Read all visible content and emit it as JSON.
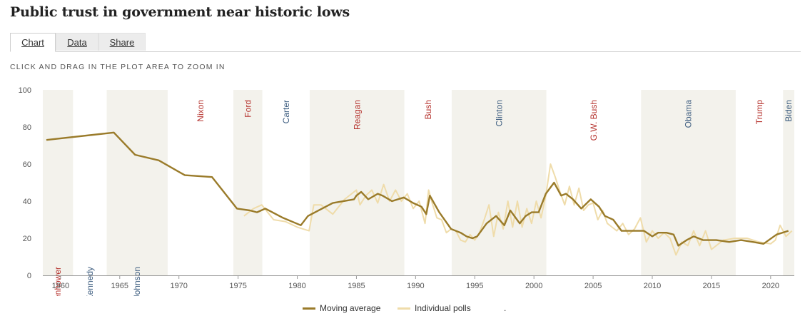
{
  "page": {
    "title": "Public trust in government near historic lows",
    "tabs": [
      {
        "label": "Chart",
        "active": true
      },
      {
        "label": "Data",
        "active": false
      },
      {
        "label": "Share",
        "active": false
      }
    ],
    "hint": "CLICK AND DRAG IN THE PLOT AREA TO ZOOM IN"
  },
  "colors": {
    "moving_average": "#9a7b2a",
    "individual_polls": "#efdcaa",
    "band": "#f3f2ec",
    "republican": "#b5322d",
    "democrat": "#3c5c7f",
    "axis_text": "#555555"
  },
  "chart_data": {
    "type": "line",
    "title": "Public trust in government near historic lows",
    "xlabel": "",
    "ylabel": "",
    "xlim": [
      1958.5,
      2022
    ],
    "ylim": [
      0,
      100
    ],
    "x_ticks": [
      1960,
      1965,
      1970,
      1975,
      1980,
      1985,
      1990,
      1995,
      2000,
      2005,
      2010,
      2015,
      2020
    ],
    "y_ticks": [
      0,
      20,
      40,
      60,
      80,
      100
    ],
    "grid": false,
    "legend": "bottom",
    "presidents": [
      {
        "name": "Eisenhower",
        "start": 1958.5,
        "end": 1961.05,
        "party": "R",
        "label_pos": "bottom",
        "shaded": true
      },
      {
        "name": "Kennedy",
        "start": 1961.05,
        "end": 1963.9,
        "party": "D",
        "label_pos": "bottom",
        "shaded": false
      },
      {
        "name": "Johnson",
        "start": 1963.9,
        "end": 1969.05,
        "party": "D",
        "label_pos": "bottom",
        "shaded": true
      },
      {
        "name": "Nixon",
        "start": 1969.05,
        "end": 1974.6,
        "party": "R",
        "label_pos": "top",
        "shaded": false
      },
      {
        "name": "Ford",
        "start": 1974.6,
        "end": 1977.05,
        "party": "R",
        "label_pos": "top",
        "shaded": true
      },
      {
        "name": "Carter",
        "start": 1977.05,
        "end": 1981.05,
        "party": "D",
        "label_pos": "top",
        "shaded": false
      },
      {
        "name": "Reagan",
        "start": 1981.05,
        "end": 1989.05,
        "party": "R",
        "label_pos": "top",
        "shaded": true
      },
      {
        "name": "Bush",
        "start": 1989.05,
        "end": 1993.05,
        "party": "R",
        "label_pos": "top",
        "shaded": false
      },
      {
        "name": "Clinton",
        "start": 1993.05,
        "end": 2001.05,
        "party": "D",
        "label_pos": "top",
        "shaded": true
      },
      {
        "name": "G.W. Bush",
        "start": 2001.05,
        "end": 2009.05,
        "party": "R",
        "label_pos": "top",
        "shaded": false
      },
      {
        "name": "Obama",
        "start": 2009.05,
        "end": 2017.05,
        "party": "D",
        "label_pos": "top",
        "shaded": true
      },
      {
        "name": "Trump",
        "start": 2017.05,
        "end": 2021.05,
        "party": "R",
        "label_pos": "top",
        "shaded": false
      },
      {
        "name": "Biden",
        "start": 2021.05,
        "end": 2022,
        "party": "D",
        "label_pos": "top",
        "shaded": true
      }
    ],
    "series": [
      {
        "name": "Moving average",
        "x": [
          1958.8,
          1964.5,
          1966.3,
          1968.3,
          1970.5,
          1972.8,
          1974.9,
          1976.0,
          1976.6,
          1977.3,
          1978.8,
          1980.3,
          1980.9,
          1983.0,
          1984.8,
          1985.0,
          1985.4,
          1986.0,
          1986.8,
          1987.2,
          1988.0,
          1989.0,
          1989.8,
          1990.5,
          1990.9,
          1991.2,
          1992.0,
          1993.0,
          1993.8,
          1994.3,
          1994.8,
          1995.2,
          1996.0,
          1996.8,
          1997.5,
          1998.0,
          1998.8,
          1999.3,
          1999.8,
          2000.4,
          2001.0,
          2001.7,
          2002.3,
          2002.7,
          2003.3,
          2004.0,
          2004.8,
          2005.5,
          2006.0,
          2006.7,
          2007.4,
          2008.0,
          2008.6,
          2009.3,
          2010.0,
          2010.5,
          2011.2,
          2011.8,
          2012.2,
          2012.9,
          2013.5,
          2014.3,
          2015.4,
          2016.5,
          2017.5,
          2018.5,
          2019.4,
          2020.5,
          2021.5
        ],
        "y": [
          73,
          77,
          65,
          62,
          54,
          53,
          36,
          35,
          34,
          36,
          31,
          27,
          32,
          39,
          41,
          43,
          45,
          41,
          44,
          43,
          40,
          42,
          39,
          37,
          33,
          43,
          34,
          25,
          23,
          21,
          20,
          21,
          28,
          32,
          27,
          35,
          28,
          32,
          34,
          34,
          44,
          50,
          43,
          44,
          41,
          36,
          41,
          37,
          32,
          30,
          24,
          24,
          24,
          24,
          21,
          23,
          23,
          22,
          16,
          19,
          21,
          19,
          19,
          18,
          19,
          18,
          17,
          22,
          24
        ]
      },
      {
        "name": "Individual polls",
        "x": [
          1975.5,
          1976.3,
          1977.0,
          1978.0,
          1979.0,
          1980.0,
          1981.0,
          1981.4,
          1982.0,
          1983.0,
          1984.0,
          1985.0,
          1985.3,
          1985.8,
          1986.3,
          1986.8,
          1987.3,
          1987.8,
          1988.3,
          1988.8,
          1989.3,
          1989.8,
          1990.3,
          1990.8,
          1991.1,
          1991.4,
          1991.8,
          1992.2,
          1992.6,
          1993.0,
          1993.4,
          1993.8,
          1994.2,
          1994.6,
          1995.0,
          1995.4,
          1995.8,
          1996.2,
          1996.6,
          1997.0,
          1997.4,
          1997.8,
          1998.2,
          1998.6,
          1999.0,
          1999.4,
          1999.8,
          2000.2,
          2000.6,
          2001.0,
          2001.4,
          2001.8,
          2002.2,
          2002.6,
          2003.0,
          2003.4,
          2003.8,
          2004.2,
          2004.6,
          2005.0,
          2005.4,
          2005.8,
          2006.2,
          2006.6,
          2007.0,
          2007.5,
          2008.0,
          2008.5,
          2009.0,
          2009.5,
          2010.0,
          2010.5,
          2011.0,
          2011.5,
          2012.0,
          2012.5,
          2013.0,
          2013.5,
          2014.0,
          2014.5,
          2015.0,
          2016.0,
          2017.0,
          2018.0,
          2019.0,
          2020.0,
          2020.4,
          2020.8,
          2021.3,
          2021.8
        ],
        "y": [
          32,
          36,
          38,
          30,
          29,
          26,
          24,
          38,
          38,
          33,
          41,
          46,
          38,
          43,
          46,
          39,
          49,
          40,
          46,
          40,
          44,
          36,
          40,
          28,
          46,
          39,
          31,
          30,
          23,
          25,
          24,
          19,
          18,
          22,
          19,
          23,
          30,
          38,
          21,
          34,
          25,
          40,
          26,
          40,
          26,
          36,
          28,
          40,
          31,
          43,
          60,
          53,
          45,
          38,
          48,
          38,
          47,
          35,
          38,
          39,
          30,
          35,
          28,
          26,
          24,
          28,
          22,
          25,
          31,
          18,
          24,
          20,
          23,
          20,
          11,
          18,
          16,
          24,
          16,
          24,
          14,
          19,
          20,
          20,
          18,
          17,
          19,
          27,
          21,
          24
        ]
      }
    ]
  }
}
